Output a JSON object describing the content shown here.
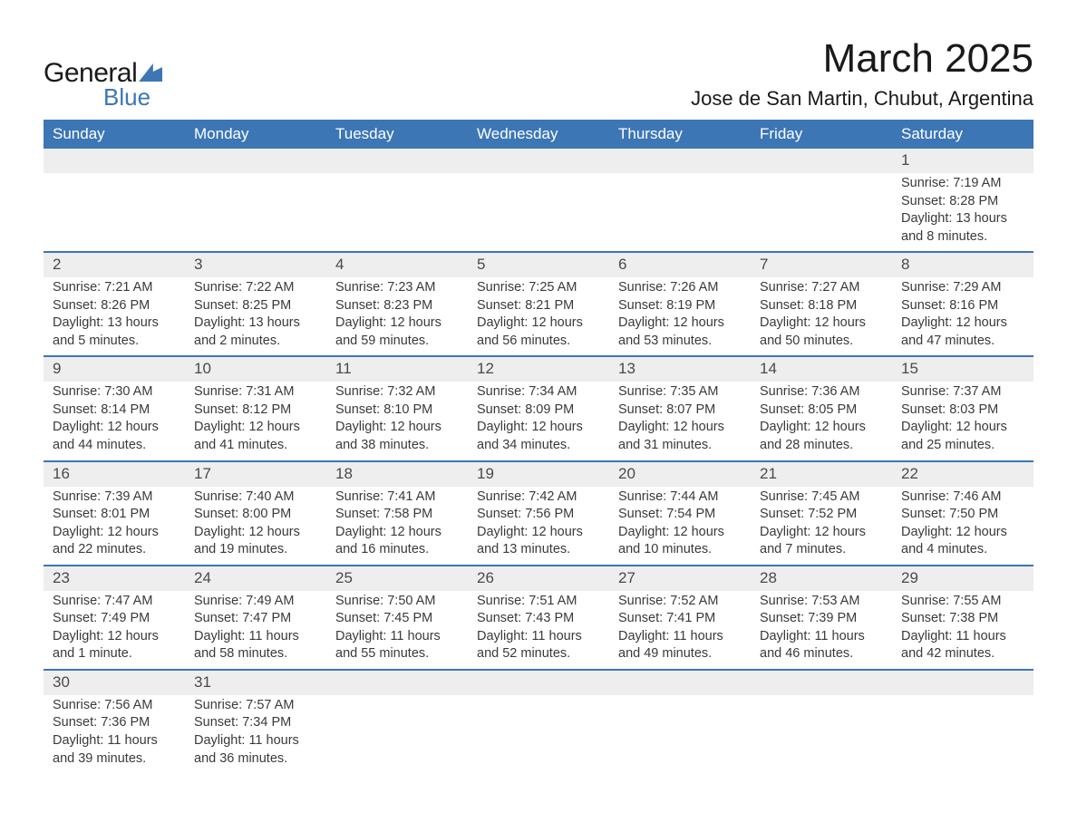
{
  "brand": {
    "word1": "General",
    "word2": "Blue"
  },
  "title": "March 2025",
  "location": "Jose de San Martin, Chubut, Argentina",
  "colors": {
    "header_bg": "#3c76b5",
    "header_text": "#ffffff",
    "daynum_bg": "#eeeeee",
    "row_divider": "#3c76b5",
    "body_text": "#3a3a3a",
    "title_text": "#1a1a1a",
    "logo_accent": "#3c76b5"
  },
  "typography": {
    "title_fontsize": 44,
    "location_fontsize": 22,
    "dayheader_fontsize": 17,
    "cell_fontsize": 14.5
  },
  "day_headers": [
    "Sunday",
    "Monday",
    "Tuesday",
    "Wednesday",
    "Thursday",
    "Friday",
    "Saturday"
  ],
  "weeks": [
    [
      null,
      null,
      null,
      null,
      null,
      null,
      {
        "n": "1",
        "sr": "7:19 AM",
        "ss": "8:28 PM",
        "dl": "13 hours and 8 minutes."
      }
    ],
    [
      {
        "n": "2",
        "sr": "7:21 AM",
        "ss": "8:26 PM",
        "dl": "13 hours and 5 minutes."
      },
      {
        "n": "3",
        "sr": "7:22 AM",
        "ss": "8:25 PM",
        "dl": "13 hours and 2 minutes."
      },
      {
        "n": "4",
        "sr": "7:23 AM",
        "ss": "8:23 PM",
        "dl": "12 hours and 59 minutes."
      },
      {
        "n": "5",
        "sr": "7:25 AM",
        "ss": "8:21 PM",
        "dl": "12 hours and 56 minutes."
      },
      {
        "n": "6",
        "sr": "7:26 AM",
        "ss": "8:19 PM",
        "dl": "12 hours and 53 minutes."
      },
      {
        "n": "7",
        "sr": "7:27 AM",
        "ss": "8:18 PM",
        "dl": "12 hours and 50 minutes."
      },
      {
        "n": "8",
        "sr": "7:29 AM",
        "ss": "8:16 PM",
        "dl": "12 hours and 47 minutes."
      }
    ],
    [
      {
        "n": "9",
        "sr": "7:30 AM",
        "ss": "8:14 PM",
        "dl": "12 hours and 44 minutes."
      },
      {
        "n": "10",
        "sr": "7:31 AM",
        "ss": "8:12 PM",
        "dl": "12 hours and 41 minutes."
      },
      {
        "n": "11",
        "sr": "7:32 AM",
        "ss": "8:10 PM",
        "dl": "12 hours and 38 minutes."
      },
      {
        "n": "12",
        "sr": "7:34 AM",
        "ss": "8:09 PM",
        "dl": "12 hours and 34 minutes."
      },
      {
        "n": "13",
        "sr": "7:35 AM",
        "ss": "8:07 PM",
        "dl": "12 hours and 31 minutes."
      },
      {
        "n": "14",
        "sr": "7:36 AM",
        "ss": "8:05 PM",
        "dl": "12 hours and 28 minutes."
      },
      {
        "n": "15",
        "sr": "7:37 AM",
        "ss": "8:03 PM",
        "dl": "12 hours and 25 minutes."
      }
    ],
    [
      {
        "n": "16",
        "sr": "7:39 AM",
        "ss": "8:01 PM",
        "dl": "12 hours and 22 minutes."
      },
      {
        "n": "17",
        "sr": "7:40 AM",
        "ss": "8:00 PM",
        "dl": "12 hours and 19 minutes."
      },
      {
        "n": "18",
        "sr": "7:41 AM",
        "ss": "7:58 PM",
        "dl": "12 hours and 16 minutes."
      },
      {
        "n": "19",
        "sr": "7:42 AM",
        "ss": "7:56 PM",
        "dl": "12 hours and 13 minutes."
      },
      {
        "n": "20",
        "sr": "7:44 AM",
        "ss": "7:54 PM",
        "dl": "12 hours and 10 minutes."
      },
      {
        "n": "21",
        "sr": "7:45 AM",
        "ss": "7:52 PM",
        "dl": "12 hours and 7 minutes."
      },
      {
        "n": "22",
        "sr": "7:46 AM",
        "ss": "7:50 PM",
        "dl": "12 hours and 4 minutes."
      }
    ],
    [
      {
        "n": "23",
        "sr": "7:47 AM",
        "ss": "7:49 PM",
        "dl": "12 hours and 1 minute."
      },
      {
        "n": "24",
        "sr": "7:49 AM",
        "ss": "7:47 PM",
        "dl": "11 hours and 58 minutes."
      },
      {
        "n": "25",
        "sr": "7:50 AM",
        "ss": "7:45 PM",
        "dl": "11 hours and 55 minutes."
      },
      {
        "n": "26",
        "sr": "7:51 AM",
        "ss": "7:43 PM",
        "dl": "11 hours and 52 minutes."
      },
      {
        "n": "27",
        "sr": "7:52 AM",
        "ss": "7:41 PM",
        "dl": "11 hours and 49 minutes."
      },
      {
        "n": "28",
        "sr": "7:53 AM",
        "ss": "7:39 PM",
        "dl": "11 hours and 46 minutes."
      },
      {
        "n": "29",
        "sr": "7:55 AM",
        "ss": "7:38 PM",
        "dl": "11 hours and 42 minutes."
      }
    ],
    [
      {
        "n": "30",
        "sr": "7:56 AM",
        "ss": "7:36 PM",
        "dl": "11 hours and 39 minutes."
      },
      {
        "n": "31",
        "sr": "7:57 AM",
        "ss": "7:34 PM",
        "dl": "11 hours and 36 minutes."
      },
      null,
      null,
      null,
      null,
      null
    ]
  ],
  "labels": {
    "sunrise": "Sunrise: ",
    "sunset": "Sunset: ",
    "daylight": "Daylight: "
  }
}
